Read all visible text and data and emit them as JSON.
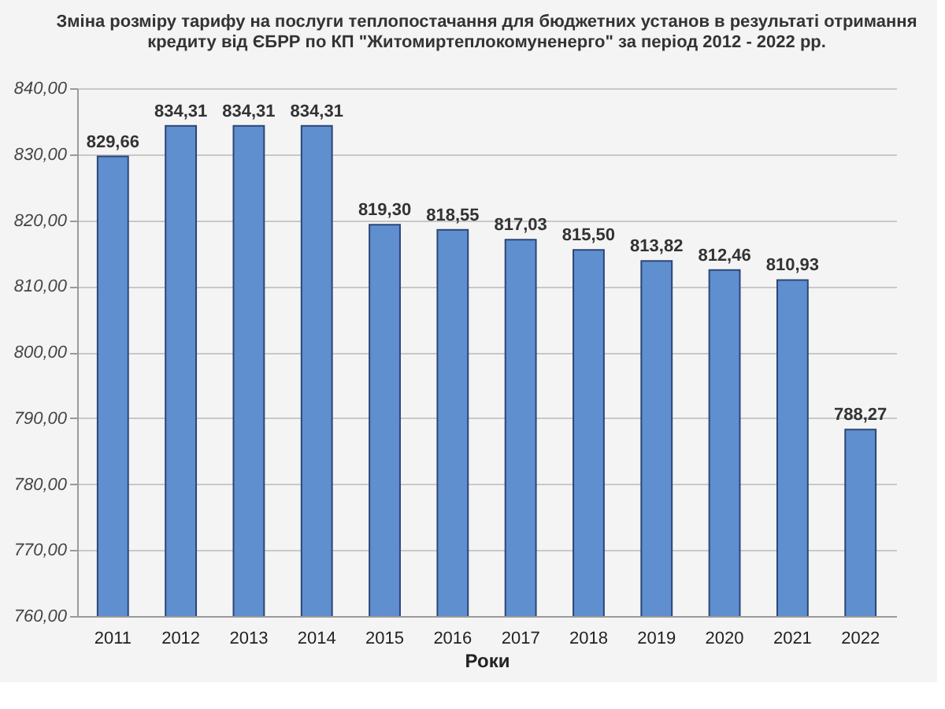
{
  "chart_data": {
    "type": "bar",
    "title": "Зміна розміру тарифу на послуги теплопостачання для бюджетних установ в результаті отримання кредиту від ЄБРР по КП \"Житомиртеплокомуненерго\" за період 2012 - 2022 рр.",
    "xlabel": "Роки",
    "categories": [
      "2011",
      "2012",
      "2013",
      "2014",
      "2015",
      "2016",
      "2017",
      "2018",
      "2019",
      "2020",
      "2021",
      "2022"
    ],
    "values": [
      829.66,
      834.31,
      834.31,
      834.31,
      819.3,
      818.55,
      817.03,
      815.5,
      813.82,
      812.46,
      810.93,
      788.27
    ],
    "value_labels": [
      "829,66",
      "834,31",
      "834,31",
      "834,31",
      "819,30",
      "818,55",
      "817,03",
      "815,50",
      "813,82",
      "812,46",
      "810,93",
      "788,27"
    ],
    "color": "#5f8fcf",
    "ylim": [
      760,
      840
    ],
    "yticks": [
      {
        "value": 760,
        "label": "760,00"
      },
      {
        "value": 770,
        "label": "770,00"
      },
      {
        "value": 780,
        "label": "780,00"
      },
      {
        "value": 790,
        "label": "790,00"
      },
      {
        "value": 800,
        "label": "800,00"
      },
      {
        "value": 810,
        "label": "810,00"
      },
      {
        "value": 820,
        "label": "820,00"
      },
      {
        "value": 830,
        "label": "830,00"
      },
      {
        "value": 840,
        "label": "840,00"
      }
    ],
    "grid": "y"
  }
}
